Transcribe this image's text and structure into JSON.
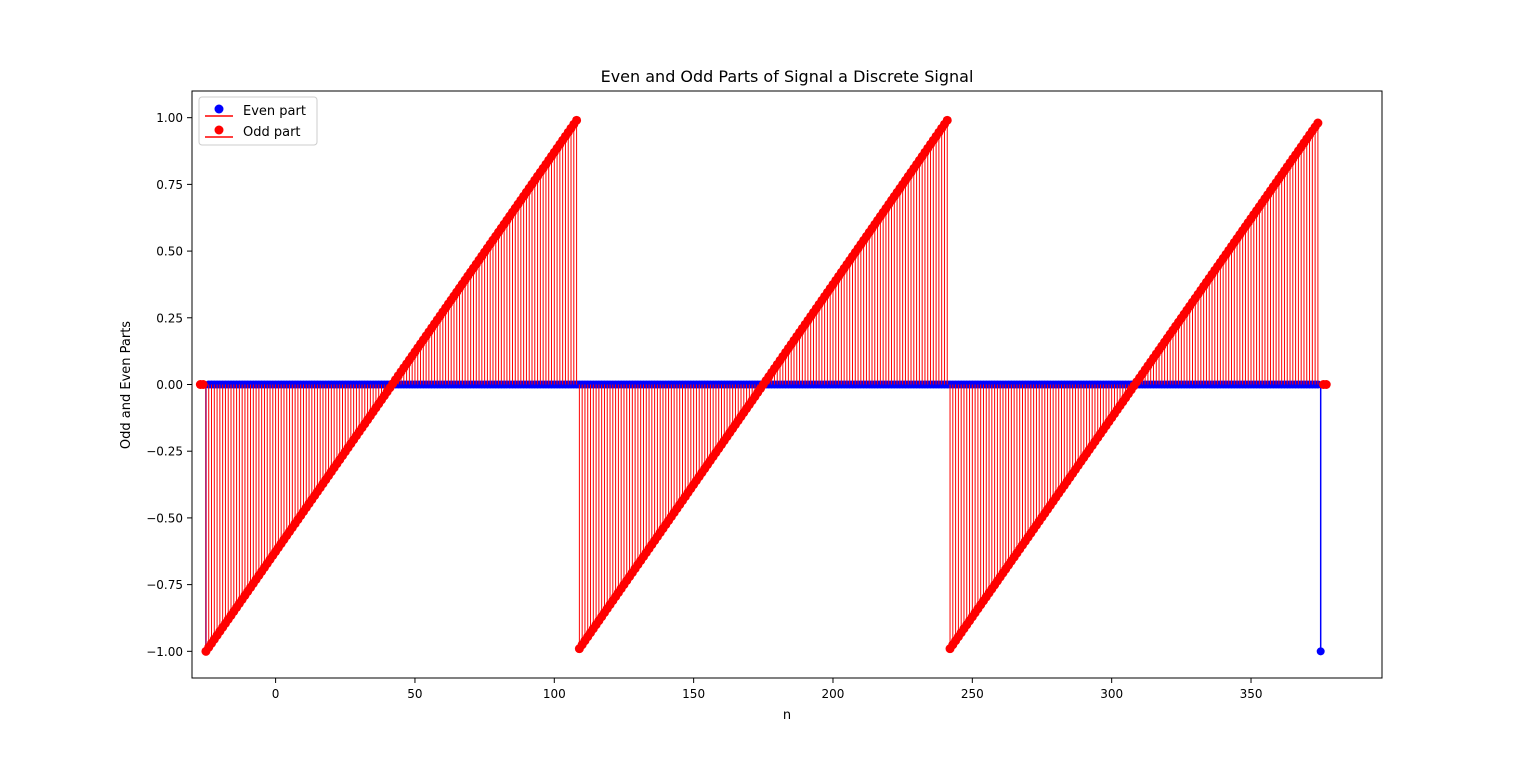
{
  "chart_data": {
    "type": "stem",
    "title": "Even and Odd Parts of Signal a Discrete Signal",
    "xlabel": "n",
    "ylabel": "Odd and Even Parts",
    "xlim": [
      -30,
      397
    ],
    "ylim": [
      -1.1,
      1.1
    ],
    "xticks": [
      0,
      50,
      100,
      150,
      200,
      250,
      300,
      350
    ],
    "xtick_labels": [
      "0",
      "50",
      "100",
      "150",
      "200",
      "250",
      "300",
      "350"
    ],
    "yticks": [
      -1.0,
      -0.75,
      -0.5,
      -0.25,
      0.0,
      0.25,
      0.5,
      0.75,
      1.0
    ],
    "ytick_labels": [
      "−1.00",
      "−0.75",
      "−0.50",
      "−0.25",
      "0.00",
      "0.25",
      "0.50",
      "0.75",
      "1.00"
    ],
    "grid": false,
    "legend_position": "upper-left",
    "n_range": [
      -27,
      377
    ],
    "series": [
      {
        "name": "Even part",
        "color": "#0000ff",
        "description": "zero everywhere except n=-25 and n=375 where value is -1.0",
        "nonzero_points": [
          {
            "n": -25,
            "value": -1.0
          },
          {
            "n": 375,
            "value": -1.0
          }
        ]
      },
      {
        "name": "Odd part",
        "color": "#ff0000",
        "description": "sawtooth ramps from -1 to +1 over each period of ~133 samples",
        "segments": [
          {
            "n_start": -25,
            "n_end": 108,
            "v_start": -1.0,
            "v_end": 0.99
          },
          {
            "n_start": 109,
            "n_end": 241,
            "v_start": -0.99,
            "v_end": 0.99
          },
          {
            "n_start": 242,
            "n_end": 374,
            "v_start": -0.99,
            "v_end": 0.98
          }
        ],
        "zero_points": [
          -27,
          -26,
          376,
          377
        ]
      }
    ]
  }
}
